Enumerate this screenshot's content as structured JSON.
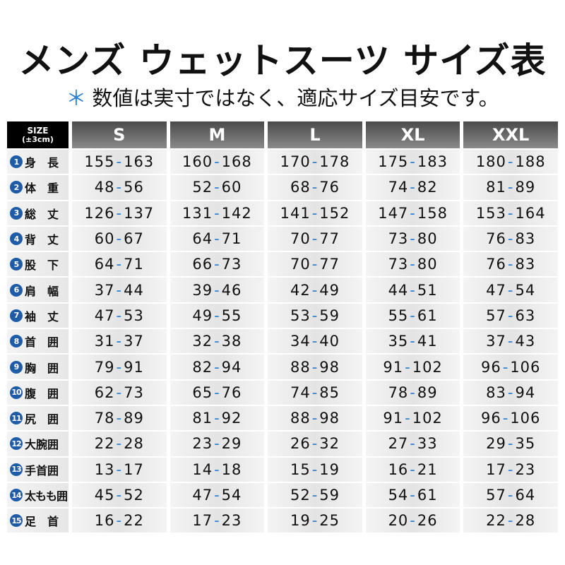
{
  "header": {
    "title": "メンズ ウェットスーツ サイズ表",
    "note_mark": "＊",
    "note": "数値は実寸ではなく、適応サイズ目安です。"
  },
  "table": {
    "corner": {
      "label": "SIZE",
      "tolerance": "(±3cm)"
    },
    "columns": [
      "S",
      "M",
      "L",
      "XL",
      "XXL"
    ],
    "rows": [
      {
        "number": "1",
        "label": "身　長",
        "values": [
          "155-163",
          "160-168",
          "170-178",
          "175-183",
          "180-188"
        ]
      },
      {
        "number": "2",
        "label": "体　重",
        "values": [
          "48-56",
          "52-60",
          "68-76",
          "74-82",
          "81-89"
        ]
      },
      {
        "number": "3",
        "label": "総　丈",
        "values": [
          "126-137",
          "131-142",
          "141-152",
          "147-158",
          "153-164"
        ]
      },
      {
        "number": "4",
        "label": "背　丈",
        "values": [
          "60-67",
          "64-71",
          "70-77",
          "73-80",
          "76-83"
        ]
      },
      {
        "number": "5",
        "label": "股　下",
        "values": [
          "64-71",
          "66-73",
          "70-77",
          "73-80",
          "76-83"
        ]
      },
      {
        "number": "6",
        "label": "肩　幅",
        "values": [
          "37-44",
          "39-46",
          "42-49",
          "44-51",
          "47-54"
        ]
      },
      {
        "number": "7",
        "label": "袖　丈",
        "values": [
          "47-53",
          "49-55",
          "53-59",
          "55-61",
          "57-63"
        ]
      },
      {
        "number": "8",
        "label": "首　囲",
        "values": [
          "31-37",
          "32-38",
          "34-40",
          "35-41",
          "37-43"
        ]
      },
      {
        "number": "9",
        "label": "胸　囲",
        "values": [
          "79-91",
          "82-94",
          "88-98",
          "91-102",
          "96-106"
        ]
      },
      {
        "number": "10",
        "label": "腹　囲",
        "values": [
          "62-73",
          "65-76",
          "74-85",
          "78-89",
          "83-94"
        ]
      },
      {
        "number": "11",
        "label": "尻　囲",
        "values": [
          "78-89",
          "81-92",
          "88-98",
          "91-102",
          "96-106"
        ]
      },
      {
        "number": "12",
        "label": "大腕囲",
        "values": [
          "22-28",
          "23-29",
          "26-32",
          "27-33",
          "29-35"
        ]
      },
      {
        "number": "13",
        "label": "手首囲",
        "values": [
          "13-17",
          "14-18",
          "15-19",
          "16-21",
          "17-23"
        ]
      },
      {
        "number": "14",
        "label": "太もも囲",
        "values": [
          "45-52",
          "47-54",
          "52-59",
          "54-61",
          "57-64"
        ]
      },
      {
        "number": "15",
        "label": "足　首",
        "values": [
          "16-22",
          "17-23",
          "19-25",
          "20-26",
          "22-28"
        ]
      }
    ]
  }
}
